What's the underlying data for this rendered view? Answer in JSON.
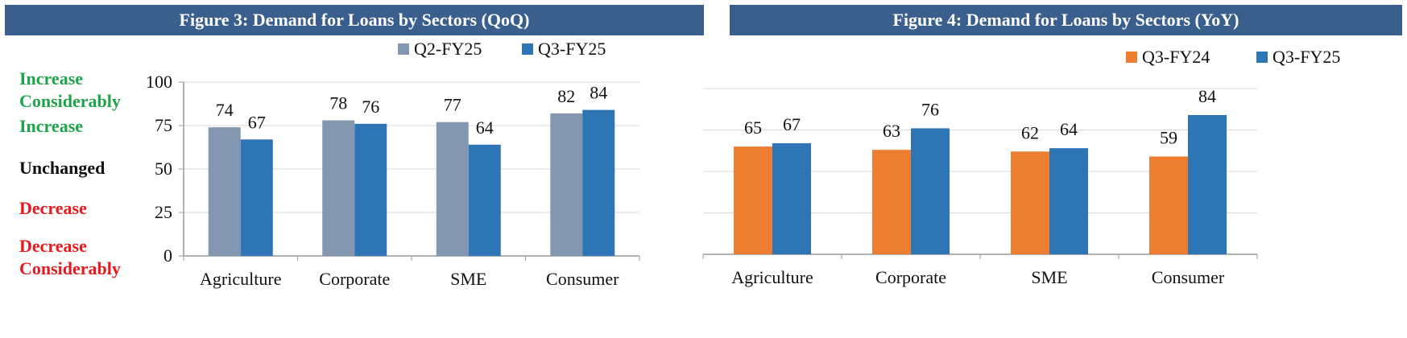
{
  "colors": {
    "title_bg": "#3a5f8d",
    "q2_fy25": "#8497b0",
    "q3_fy25": "#2e75b6",
    "q3_fy24": "#ed7d31",
    "green": "#1fa34a",
    "black": "#111111",
    "red": "#e8191d",
    "axis": "#999999",
    "grid": "#d9d9d9"
  },
  "side_labels": [
    {
      "text": "Increase\nConsiderably",
      "color": "green"
    },
    {
      "text": "Increase",
      "color": "green"
    },
    {
      "text": "Unchanged",
      "color": "black"
    },
    {
      "text": "Decrease",
      "color": "red"
    },
    {
      "text": "Decrease\nConsiderably",
      "color": "red"
    }
  ],
  "chart_data": [
    {
      "type": "bar",
      "title": "Figure 3: Demand for Loans by Sectors (QoQ)",
      "categories": [
        "Agriculture",
        "Corporate",
        "SME",
        "Consumer"
      ],
      "series": [
        {
          "name": "Q2-FY25",
          "values": [
            74,
            78,
            77,
            82
          ],
          "color": "#8497b0"
        },
        {
          "name": "Q3-FY25",
          "values": [
            67,
            76,
            64,
            84
          ],
          "color": "#2e75b6"
        }
      ],
      "ylim": [
        0,
        100
      ],
      "yticks": [
        "0",
        "25",
        "50",
        "75",
        "100"
      ],
      "grid": true,
      "legend": "top-right"
    },
    {
      "type": "bar",
      "title": "Figure 4: Demand for Loans by Sectors (YoY)",
      "categories": [
        "Agriculture",
        "Corporate",
        "SME",
        "Consumer"
      ],
      "series": [
        {
          "name": "Q3-FY24",
          "values": [
            65,
            63,
            62,
            59
          ],
          "color": "#ed7d31"
        },
        {
          "name": "Q3-FY25",
          "values": [
            67,
            76,
            64,
            84
          ],
          "color": "#2e75b6"
        }
      ],
      "ylim": [
        0,
        100
      ],
      "grid": true,
      "legend": "top-right"
    }
  ]
}
